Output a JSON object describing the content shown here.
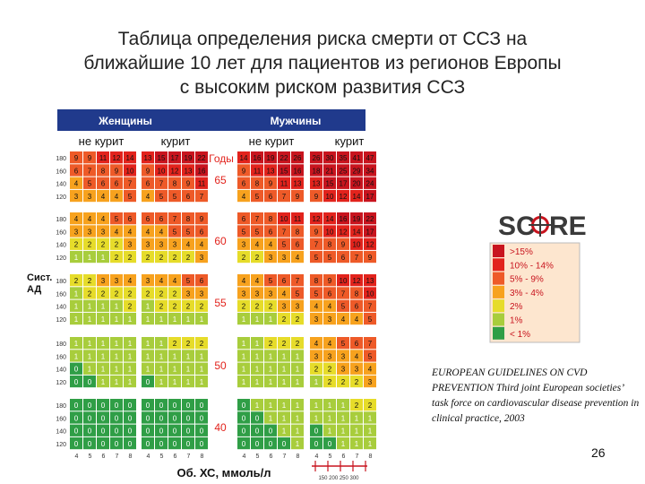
{
  "title_lines": [
    "Таблица определения риска смерти от ССЗ на",
    "ближайшие 10 лет для пациентов из регионов Европы",
    "с высоким риском развития ССЗ"
  ],
  "source_text": "EUROPEAN GUIDELINES ON CVD PREVENTION Third joint European societies’ task force on cardiovascular disease prevention in clinical practice, 2003",
  "page_number": "26",
  "chart_data": {
    "type": "heatmap",
    "sex_headers": [
      "Женщины",
      "Мужчины"
    ],
    "smoking_headers": [
      "не курит",
      "курит",
      "не курит",
      "курит"
    ],
    "age_axis_label": "Годы",
    "ages": [
      "65",
      "60",
      "55",
      "50",
      "40"
    ],
    "sbp_axis_label": "Сист. АД",
    "sbp_levels": [
      "180",
      "160",
      "140",
      "120"
    ],
    "cholesterol_axis_label": "Об. ХС, ммоль/л",
    "cholesterol_levels": [
      "4",
      "5",
      "6",
      "7",
      "8"
    ],
    "scale_bar_label": "150 200 250 300",
    "panel_order": [
      "women_nonsmoker",
      "women_smoker",
      "men_nonsmoker",
      "men_smoker"
    ],
    "values": [
      [
        [
          [
            9,
            9,
            11,
            12,
            14
          ],
          [
            6,
            7,
            8,
            9,
            10
          ],
          [
            4,
            5,
            6,
            6,
            7
          ],
          [
            3,
            3,
            4,
            4,
            5
          ]
        ],
        [
          [
            13,
            15,
            17,
            19,
            22
          ],
          [
            9,
            10,
            12,
            13,
            16
          ],
          [
            6,
            7,
            8,
            9,
            11
          ],
          [
            4,
            5,
            5,
            6,
            7
          ]
        ],
        [
          [
            14,
            16,
            19,
            22,
            26
          ],
          [
            9,
            11,
            13,
            15,
            16
          ],
          [
            6,
            8,
            9,
            11,
            13
          ],
          [
            4,
            5,
            6,
            7,
            9
          ]
        ],
        [
          [
            26,
            30,
            35,
            41,
            47
          ],
          [
            18,
            21,
            25,
            29,
            34
          ],
          [
            13,
            15,
            17,
            20,
            24
          ],
          [
            9,
            10,
            12,
            14,
            17
          ]
        ]
      ],
      [
        [
          [
            4,
            4,
            4,
            5,
            6
          ],
          [
            3,
            3,
            3,
            4,
            4
          ],
          [
            2,
            2,
            2,
            2,
            3
          ],
          [
            1,
            1,
            1,
            2,
            2
          ]
        ],
        [
          [
            6,
            6,
            7,
            8,
            9
          ],
          [
            4,
            4,
            5,
            5,
            6
          ],
          [
            3,
            3,
            3,
            4,
            4
          ],
          [
            2,
            2,
            2,
            2,
            3
          ]
        ],
        [
          [
            6,
            7,
            8,
            10,
            11
          ],
          [
            5,
            5,
            6,
            7,
            8
          ],
          [
            3,
            4,
            4,
            5,
            6
          ],
          [
            2,
            2,
            3,
            3,
            4
          ]
        ],
        [
          [
            12,
            14,
            16,
            19,
            22
          ],
          [
            9,
            10,
            12,
            14,
            17
          ],
          [
            7,
            8,
            9,
            10,
            12
          ],
          [
            5,
            5,
            6,
            7,
            9
          ]
        ]
      ],
      [
        [
          [
            2,
            2,
            3,
            3,
            4
          ],
          [
            1,
            2,
            2,
            2,
            2
          ],
          [
            1,
            1,
            1,
            1,
            2
          ],
          [
            1,
            1,
            1,
            1,
            1
          ]
        ],
        [
          [
            3,
            4,
            4,
            5,
            6
          ],
          [
            2,
            2,
            2,
            3,
            3
          ],
          [
            1,
            2,
            2,
            2,
            2
          ],
          [
            1,
            1,
            1,
            1,
            1
          ]
        ],
        [
          [
            4,
            4,
            5,
            6,
            7
          ],
          [
            3,
            3,
            3,
            4,
            5
          ],
          [
            2,
            2,
            2,
            3,
            3
          ],
          [
            1,
            1,
            1,
            2,
            2
          ]
        ],
        [
          [
            8,
            9,
            10,
            12,
            13
          ],
          [
            5,
            6,
            7,
            8,
            10
          ],
          [
            4,
            4,
            5,
            6,
            7
          ],
          [
            3,
            3,
            4,
            4,
            5
          ]
        ]
      ],
      [
        [
          [
            1,
            1,
            1,
            1,
            1
          ],
          [
            1,
            1,
            1,
            1,
            1
          ],
          [
            0,
            1,
            1,
            1,
            1
          ],
          [
            0,
            0,
            1,
            1,
            1
          ]
        ],
        [
          [
            1,
            1,
            2,
            2,
            2
          ],
          [
            1,
            1,
            1,
            1,
            1
          ],
          [
            1,
            1,
            1,
            1,
            1
          ],
          [
            0,
            1,
            1,
            1,
            1
          ]
        ],
        [
          [
            1,
            1,
            2,
            2,
            2
          ],
          [
            1,
            1,
            1,
            1,
            1
          ],
          [
            1,
            1,
            1,
            1,
            1
          ],
          [
            1,
            1,
            1,
            1,
            1
          ]
        ],
        [
          [
            4,
            4,
            5,
            6,
            7
          ],
          [
            3,
            3,
            3,
            4,
            5
          ],
          [
            2,
            2,
            3,
            3,
            4
          ],
          [
            1,
            2,
            2,
            2,
            3
          ]
        ]
      ],
      [
        [
          [
            0,
            0,
            0,
            0,
            0
          ],
          [
            0,
            0,
            0,
            0,
            0
          ],
          [
            0,
            0,
            0,
            0,
            0
          ],
          [
            0,
            0,
            0,
            0,
            0
          ]
        ],
        [
          [
            0,
            0,
            0,
            0,
            0
          ],
          [
            0,
            0,
            0,
            0,
            0
          ],
          [
            0,
            0,
            0,
            0,
            0
          ],
          [
            0,
            0,
            0,
            0,
            0
          ]
        ],
        [
          [
            0,
            1,
            1,
            1,
            1
          ],
          [
            0,
            0,
            1,
            1,
            1
          ],
          [
            0,
            0,
            0,
            1,
            1
          ],
          [
            0,
            0,
            0,
            0,
            1
          ]
        ],
        [
          [
            1,
            1,
            1,
            2,
            2
          ],
          [
            1,
            1,
            1,
            1,
            1
          ],
          [
            0,
            1,
            1,
            1,
            1
          ],
          [
            0,
            0,
            1,
            1,
            1
          ]
        ]
      ]
    ],
    "legend_title": "SCORE",
    "legend": [
      {
        "label": ">15%",
        "color": "#c8141e"
      },
      {
        "label": "10% - 14%",
        "color": "#e2231c"
      },
      {
        "label": "5% - 9%",
        "color": "#ee5a28"
      },
      {
        "label": "3% - 4%",
        "color": "#f7a21e"
      },
      {
        "label": "2%",
        "color": "#e6dc2a"
      },
      {
        "label": "1%",
        "color": "#a8cd3c"
      },
      {
        "label": "< 1%",
        "color": "#2f9e46"
      }
    ],
    "header_color": "#203a8c"
  }
}
